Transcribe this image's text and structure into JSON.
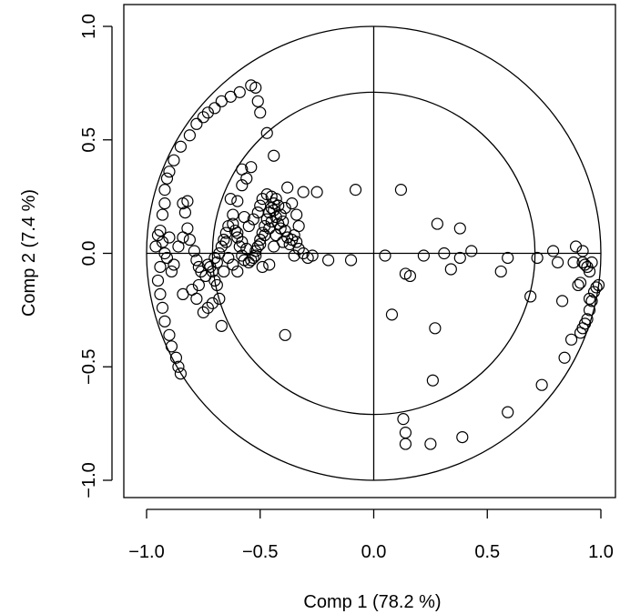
{
  "chart_data": {
    "type": "scatter",
    "title": "",
    "xlabel": "Comp 1 (78.2 %)",
    "ylabel": "Comp 2 (7.4 %)",
    "xlim": [
      -1.1,
      1.1
    ],
    "ylim": [
      -1.1,
      1.1
    ],
    "x_ticks": [
      -1.0,
      -0.5,
      0.0,
      0.5,
      1.0
    ],
    "y_ticks": [
      -1.0,
      -0.5,
      0.0,
      0.5,
      1.0
    ],
    "x_tick_labels": [
      "−1.0",
      "−0.5",
      "0.0",
      "0.5",
      "1.0"
    ],
    "y_tick_labels": [
      "−1.0",
      "−0.5",
      "0.0",
      "0.5",
      "1.0"
    ],
    "grid": false,
    "reference_circles": [
      1.0,
      0.71
    ],
    "reference_lines": [
      "x=0",
      "y=0"
    ],
    "marker": "open-circle",
    "points": [
      [
        -0.92,
        0.0
      ],
      [
        -0.94,
        -0.06
      ],
      [
        -0.95,
        -0.12
      ],
      [
        -0.94,
        -0.18
      ],
      [
        -0.93,
        -0.24
      ],
      [
        -0.92,
        -0.3
      ],
      [
        -0.9,
        -0.36
      ],
      [
        -0.89,
        -0.41
      ],
      [
        -0.87,
        -0.46
      ],
      [
        -0.86,
        -0.5
      ],
      [
        -0.85,
        -0.53
      ],
      [
        -0.96,
        0.03
      ],
      [
        -0.94,
        0.1
      ],
      [
        -0.93,
        0.17
      ],
      [
        -0.92,
        0.22
      ],
      [
        -0.92,
        0.28
      ],
      [
        -0.91,
        0.33
      ],
      [
        -0.9,
        0.36
      ],
      [
        -0.88,
        0.41
      ],
      [
        -0.85,
        0.47
      ],
      [
        -0.81,
        0.52
      ],
      [
        -0.78,
        0.57
      ],
      [
        -0.75,
        0.6
      ],
      [
        -0.73,
        0.62
      ],
      [
        -0.7,
        0.64
      ],
      [
        -0.67,
        0.67
      ],
      [
        -0.63,
        0.69
      ],
      [
        -0.59,
        0.71
      ],
      [
        -0.54,
        0.74
      ],
      [
        -0.52,
        0.73
      ],
      [
        -0.51,
        0.67
      ],
      [
        -0.5,
        0.62
      ],
      [
        -0.47,
        0.53
      ],
      [
        -0.95,
        0.08
      ],
      [
        -0.93,
        0.05
      ],
      [
        -0.9,
        0.07
      ],
      [
        -0.91,
        -0.02
      ],
      [
        -0.89,
        -0.08
      ],
      [
        -0.88,
        -0.05
      ],
      [
        -0.86,
        0.03
      ],
      [
        -0.84,
        0.07
      ],
      [
        -0.82,
        0.11
      ],
      [
        -0.83,
        0.18
      ],
      [
        -0.82,
        0.23
      ],
      [
        -0.84,
        0.22
      ],
      [
        -0.81,
        0.06
      ],
      [
        -0.79,
        0.01
      ],
      [
        -0.78,
        -0.03
      ],
      [
        -0.77,
        -0.06
      ],
      [
        -0.76,
        -0.08
      ],
      [
        -0.74,
        -0.1
      ],
      [
        -0.73,
        -0.05
      ],
      [
        -0.72,
        -0.06
      ],
      [
        -0.71,
        -0.08
      ],
      [
        -0.7,
        -0.12
      ],
      [
        -0.69,
        -0.14
      ],
      [
        -0.68,
        -0.2
      ],
      [
        -0.71,
        -0.22
      ],
      [
        -0.73,
        -0.24
      ],
      [
        -0.75,
        -0.26
      ],
      [
        -0.67,
        -0.32
      ],
      [
        -0.84,
        -0.18
      ],
      [
        -0.8,
        -0.16
      ],
      [
        -0.78,
        -0.2
      ],
      [
        -0.77,
        -0.14
      ],
      [
        -0.66,
        -0.08
      ],
      [
        -0.69,
        -0.04
      ],
      [
        -0.7,
        -0.02
      ],
      [
        -0.68,
        0.0
      ],
      [
        -0.67,
        0.03
      ],
      [
        -0.66,
        0.06
      ],
      [
        -0.65,
        0.09
      ],
      [
        -0.64,
        0.12
      ],
      [
        -0.62,
        0.13
      ],
      [
        -0.61,
        0.1
      ],
      [
        -0.6,
        0.07
      ],
      [
        -0.59,
        0.03
      ],
      [
        -0.58,
        -0.01
      ],
      [
        -0.57,
        -0.03
      ],
      [
        -0.55,
        -0.04
      ],
      [
        -0.53,
        -0.02
      ],
      [
        -0.52,
        0.01
      ],
      [
        -0.51,
        0.03
      ],
      [
        -0.5,
        0.06
      ],
      [
        -0.49,
        0.09
      ],
      [
        -0.48,
        0.12
      ],
      [
        -0.47,
        0.15
      ],
      [
        -0.46,
        0.18
      ],
      [
        -0.45,
        0.2
      ],
      [
        -0.44,
        0.22
      ],
      [
        -0.43,
        0.24
      ],
      [
        -0.42,
        0.21
      ],
      [
        -0.41,
        0.17
      ],
      [
        -0.4,
        0.14
      ],
      [
        -0.39,
        0.1
      ],
      [
        -0.38,
        0.07
      ],
      [
        -0.37,
        0.04
      ],
      [
        -0.36,
        0.06
      ],
      [
        -0.35,
        0.08
      ],
      [
        -0.34,
        0.05
      ],
      [
        -0.33,
        0.02
      ],
      [
        -0.31,
        0.0
      ],
      [
        -0.29,
        -0.02
      ],
      [
        -0.27,
        -0.01
      ],
      [
        -0.55,
        0.12
      ],
      [
        -0.53,
        0.15
      ],
      [
        -0.51,
        0.18
      ],
      [
        -0.5,
        0.21
      ],
      [
        -0.49,
        0.24
      ],
      [
        -0.47,
        0.26
      ],
      [
        -0.45,
        0.25
      ],
      [
        -0.44,
        0.19
      ],
      [
        -0.43,
        0.16
      ],
      [
        -0.42,
        0.13
      ],
      [
        -0.46,
        0.11
      ],
      [
        -0.48,
        0.08
      ],
      [
        -0.5,
        0.04
      ],
      [
        -0.52,
        -0.01
      ],
      [
        -0.54,
        -0.03
      ],
      [
        -0.56,
        0.02
      ],
      [
        -0.58,
        0.05
      ],
      [
        -0.6,
        0.09
      ],
      [
        -0.45,
        0.14
      ],
      [
        -0.41,
        0.11
      ],
      [
        -0.43,
        0.08
      ],
      [
        -0.4,
        0.05
      ],
      [
        -0.44,
        0.03
      ],
      [
        -0.46,
        -0.05
      ],
      [
        -0.49,
        -0.06
      ],
      [
        -0.58,
        0.3
      ],
      [
        -0.56,
        0.33
      ],
      [
        -0.58,
        0.37
      ],
      [
        -0.54,
        0.38
      ],
      [
        -0.44,
        0.43
      ],
      [
        -0.38,
        0.29
      ],
      [
        -0.31,
        0.27
      ],
      [
        -0.25,
        0.27
      ],
      [
        -0.36,
        0.22
      ],
      [
        -0.34,
        0.17
      ],
      [
        -0.33,
        0.12
      ],
      [
        -0.39,
        0.2
      ],
      [
        -0.2,
        -0.03
      ],
      [
        -0.1,
        -0.03
      ],
      [
        -0.08,
        0.28
      ],
      [
        -0.39,
        -0.36
      ],
      [
        -0.6,
        0.23
      ],
      [
        -0.57,
        0.16
      ],
      [
        -0.63,
        0.24
      ],
      [
        -0.62,
        0.17
      ],
      [
        -0.65,
        0.05
      ],
      [
        -0.64,
        -0.02
      ],
      [
        -0.62,
        -0.05
      ],
      [
        -0.6,
        -0.08
      ],
      [
        -0.35,
        -0.01
      ],
      [
        0.12,
        0.28
      ],
      [
        0.28,
        0.13
      ],
      [
        0.38,
        0.11
      ],
      [
        0.05,
        -0.01
      ],
      [
        0.22,
        -0.01
      ],
      [
        0.31,
        0.0
      ],
      [
        0.38,
        -0.02
      ],
      [
        0.43,
        0.01
      ],
      [
        0.16,
        -0.1
      ],
      [
        0.14,
        -0.09
      ],
      [
        0.34,
        -0.07
      ],
      [
        0.08,
        -0.27
      ],
      [
        0.27,
        -0.33
      ],
      [
        0.26,
        -0.56
      ],
      [
        0.13,
        -0.73
      ],
      [
        0.14,
        -0.79
      ],
      [
        0.14,
        -0.84
      ],
      [
        0.25,
        -0.84
      ],
      [
        0.39,
        -0.81
      ],
      [
        0.59,
        -0.7
      ],
      [
        0.56,
        -0.08
      ],
      [
        0.59,
        -0.02
      ],
      [
        0.69,
        -0.19
      ],
      [
        0.72,
        -0.02
      ],
      [
        0.74,
        -0.58
      ],
      [
        0.79,
        0.01
      ],
      [
        0.81,
        -0.04
      ],
      [
        0.83,
        -0.21
      ],
      [
        0.84,
        -0.46
      ],
      [
        0.87,
        -0.38
      ],
      [
        0.88,
        -0.04
      ],
      [
        0.89,
        0.03
      ],
      [
        0.9,
        -0.14
      ],
      [
        0.91,
        -0.13
      ],
      [
        0.92,
        -0.04
      ],
      [
        0.92,
        0.01
      ],
      [
        0.93,
        -0.05
      ],
      [
        0.94,
        -0.06
      ],
      [
        0.95,
        -0.08
      ],
      [
        0.96,
        -0.04
      ],
      [
        0.97,
        -0.17
      ],
      [
        0.96,
        -0.21
      ],
      [
        0.95,
        -0.25
      ],
      [
        0.94,
        -0.29
      ],
      [
        0.93,
        -0.31
      ],
      [
        0.92,
        -0.33
      ],
      [
        0.91,
        -0.35
      ],
      [
        0.98,
        -0.15
      ],
      [
        0.99,
        -0.14
      ],
      [
        0.95,
        -0.2
      ]
    ]
  }
}
